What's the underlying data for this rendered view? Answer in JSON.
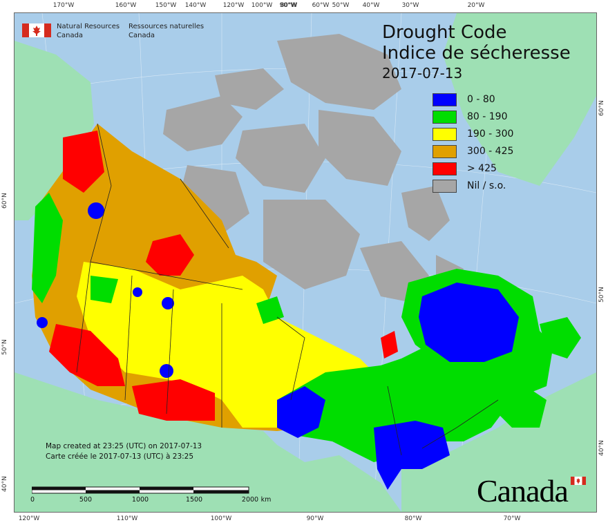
{
  "agency": {
    "en_line1": "Natural Resources",
    "en_line2": "Canada",
    "fr_line1": "Ressources naturelles",
    "fr_line2": "Canada"
  },
  "title": {
    "line1": "Drought Code",
    "line2": "Indice de sécheresse",
    "date": "2017-07-13"
  },
  "legend": [
    {
      "label": "0 - 80",
      "color": "#0000ff"
    },
    {
      "label": "80 - 190",
      "color": "#00dd00"
    },
    {
      "label": "190 - 300",
      "color": "#ffff00"
    },
    {
      "label": "300 - 425",
      "color": "#e0a000"
    },
    {
      "label": "> 425",
      "color": "#ff0000"
    },
    {
      "label": "Nil / s.o.",
      "color": "#a6a6a6"
    }
  ],
  "colors": {
    "water": "#a9cdea",
    "other_land": "#9ee0b4",
    "nil": "#a6a6a6"
  },
  "notes": {
    "en": "Map created at 23:25 (UTC) on 2017-07-13",
    "fr": "Carte créée le 2017-07-13 (UTC) à 23:25"
  },
  "scale_bar": {
    "labels": [
      "0",
      "500",
      "1000",
      "1500",
      "2000"
    ],
    "unit": "km"
  },
  "wordmark": "Canada",
  "graticule": {
    "top": [
      "170°W",
      "160°W",
      "150°W",
      "140°W",
      "120°W",
      "100°W",
      "90°W",
      "80°W",
      "60°W",
      "50°W",
      "40°W",
      "30°W",
      "20°W"
    ],
    "bottom": [
      "120°W",
      "110°W",
      "100°W",
      "90°W",
      "80°W",
      "70°W"
    ],
    "left": [
      "60°N",
      "50°N",
      "40°N"
    ],
    "right": [
      "60°N",
      "50°N",
      "40°N"
    ]
  }
}
